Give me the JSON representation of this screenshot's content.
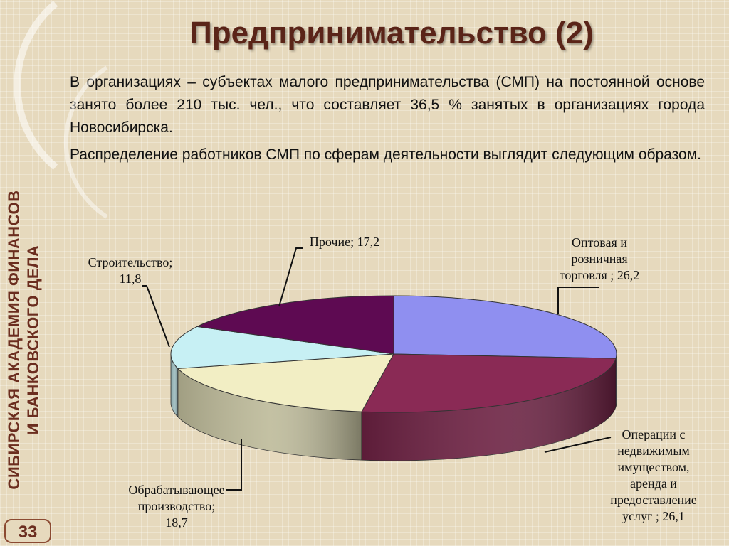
{
  "slide": {
    "title": "Предпринимательство (2)",
    "paragraph1": "В организациях – субъектах малого предпринимательства (СМП) на постоянной основе занято более 210 тыс. чел., что составляет 36,5 % занятых в  организациях города Новосибирска.",
    "paragraph2": "Распределение работников СМП по сферам деятельности выглядит следующим образом.",
    "sidebar_line1": "СИБИРСКАЯ АКАДЕМИЯ ФИНАНСОВ",
    "sidebar_line2": "И БАНКОВСКОГО ДЕЛА",
    "page_number": "33"
  },
  "chart_data": {
    "type": "pie",
    "title": "",
    "start_angle": "90° (top), clockwise",
    "slices": [
      {
        "label_lines": [
          "Оптовая и",
          "розничная",
          "торговля ; 26,2"
        ],
        "value": 26.2,
        "color": "#8f8ff0"
      },
      {
        "label_lines": [
          "Операции с",
          "недвижимым",
          "имуществом,",
          "аренда и",
          "предоставление",
          "услуг ; 26,1"
        ],
        "value": 26.1,
        "color": "#8a2a55"
      },
      {
        "label_lines": [
          "Обрабатывающее",
          "производство;",
          "18,7"
        ],
        "value": 18.7,
        "color": "#f2eec4"
      },
      {
        "label_lines": [
          "Строительство;",
          "11,8"
        ],
        "value": 11.8,
        "color": "#c7f0f4"
      },
      {
        "label_lines": [
          "Прочие; 17,2"
        ],
        "value": 17.2,
        "color": "#5e0a52"
      }
    ]
  }
}
